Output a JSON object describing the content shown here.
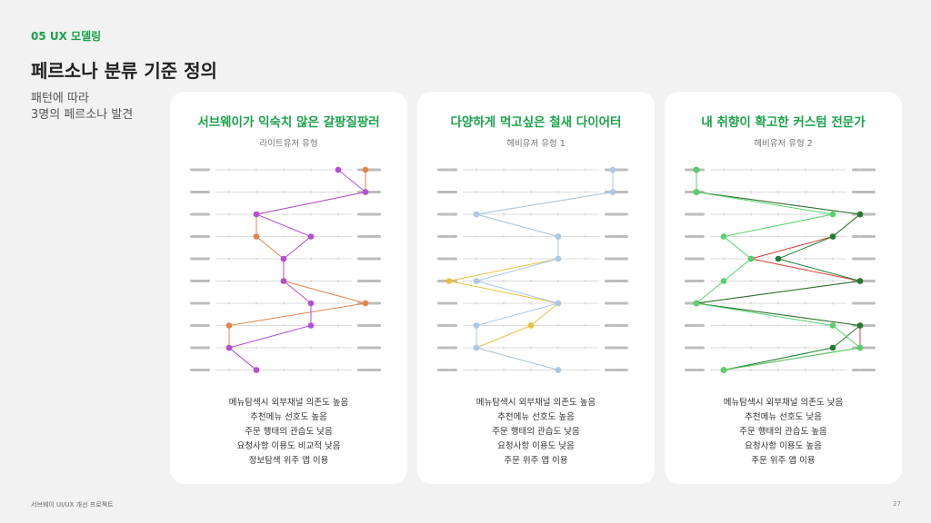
{
  "header": {
    "section_tag": "05 UX 모델링",
    "title": "페르소나 분류 기준 정의",
    "intro_lines": [
      "패턴에 따라",
      "3명의 페르소나 발견"
    ]
  },
  "cards": [
    {
      "title": "서브웨이가 익숙치 않은 갈팡질팡러",
      "subtitle": "라이트유저 유형",
      "traits": [
        "메뉴탐색시 외부채널 의존도 높음",
        "추천메뉴 선호도 높음",
        "주문 행태의 관습도 낮음",
        "요청사항 이용도 비교적 낮음",
        "정보탐색 위주 앱 이용"
      ],
      "series": [
        {
          "color": "#e3834a",
          "values": [
            3,
            3,
            -1,
            -1,
            0,
            0,
            3,
            -2,
            -2,
            -1
          ]
        },
        {
          "color": "#b44ed8",
          "values": [
            2,
            3,
            -1,
            1,
            0,
            0,
            1,
            1,
            -2,
            -1
          ]
        }
      ]
    },
    {
      "title": "다양하게 먹고싶은 철새 다이어터",
      "subtitle": "헤비유저 유형 1",
      "traits": [
        "메뉴탐색시 외부채널 의존도 높음",
        "추천메뉴 선호도 높음",
        "주문 행태의 관습도 낮음",
        "요청사항 이용도 낮음",
        "주문 위주 앱 이용"
      ],
      "series": [
        {
          "color": "#e8c03a",
          "values": [
            3,
            3,
            -2,
            1,
            1,
            -3,
            1,
            0,
            -2,
            1
          ]
        },
        {
          "color": "#a9c8ef",
          "values": [
            3,
            3,
            -2,
            1,
            1,
            -2,
            1,
            -2,
            -2,
            1
          ]
        }
      ]
    },
    {
      "title": "내 취향이 확고한 커스텀 전문가",
      "subtitle": "헤비유저 유형 2",
      "traits": [
        "메뉴탐색시 외부채널 의존도 낮음",
        "추천메뉴 선호도 낮음",
        "주문 행태의 관습도 높음",
        "요청사항 이용도 높음",
        "주문 위주 앱 이용"
      ],
      "series": [
        {
          "color": "#d8413a",
          "values": [
            -3,
            -3,
            3,
            2,
            -1,
            3,
            -3,
            3,
            3,
            -2
          ]
        },
        {
          "color": "#1e7d32",
          "values": [
            -3,
            -3,
            3,
            2,
            0,
            3,
            -3,
            3,
            2,
            -2
          ]
        },
        {
          "color": "#54d36a",
          "values": [
            -3,
            -3,
            2,
            -2,
            -1,
            -2,
            -3,
            2,
            3,
            -2
          ]
        }
      ]
    }
  ],
  "footer": {
    "project": "서브웨이 UI/UX 개선 프로젝트",
    "page_number": "27"
  }
}
